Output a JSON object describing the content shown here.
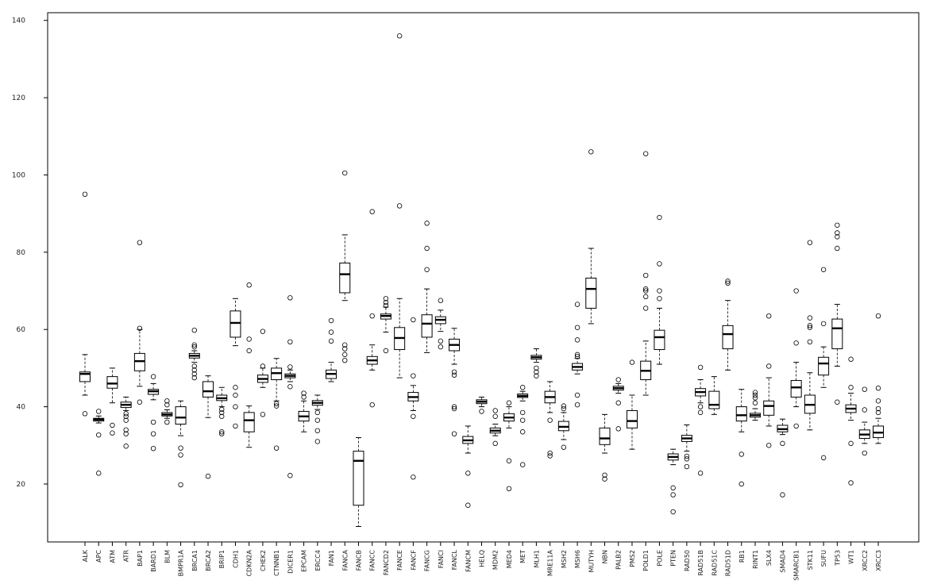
{
  "chart_data": {
    "type": "boxplot",
    "title": "",
    "xlabel": "",
    "ylabel": "",
    "ylim": [
      5,
      142
    ],
    "yticks": [
      20,
      40,
      60,
      80,
      100,
      120,
      140
    ],
    "grid": false,
    "colors": {
      "box": "#000000",
      "median": "#000000",
      "background": "#ffffff"
    },
    "boxes": [
      {
        "name": "ALK",
        "whisker_low": 43,
        "q1": 46.5,
        "median": 48.5,
        "q3": 49,
        "whisker_high": 53.5,
        "outliers": [
          95,
          38.2
        ]
      },
      {
        "name": "APC",
        "whisker_low": 35.8,
        "q1": 36.3,
        "median": 36.7,
        "q3": 37,
        "whisker_high": 37.6,
        "outliers": [
          38.8,
          32.7,
          22.8
        ]
      },
      {
        "name": "ATM",
        "whisker_low": 41,
        "q1": 44.8,
        "median": 46,
        "q3": 47.8,
        "whisker_high": 50,
        "outliers": [
          35.2,
          33.2
        ]
      },
      {
        "name": "ATR",
        "whisker_low": 39,
        "q1": 39.8,
        "median": 40.5,
        "q3": 41.2,
        "whisker_high": 42.5,
        "outliers": [
          38.2,
          37.5,
          36.5,
          34,
          33,
          29.8
        ]
      },
      {
        "name": "BAP1",
        "whisker_low": 45.3,
        "q1": 49.3,
        "median": 51.8,
        "q3": 53.8,
        "whisker_high": 60,
        "outliers": [
          82.5,
          60.3,
          41.2
        ]
      },
      {
        "name": "BARD1",
        "whisker_low": 41.8,
        "q1": 43.2,
        "median": 44,
        "q3": 44.5,
        "whisker_high": 46,
        "outliers": [
          47.8,
          36,
          33,
          29.2
        ]
      },
      {
        "name": "BLM",
        "whisker_low": 37,
        "q1": 37.6,
        "median": 38,
        "q3": 38.5,
        "whisker_high": 39.2,
        "outliers": [
          41.5,
          40.5,
          36
        ]
      },
      {
        "name": "BMPR1A",
        "whisker_low": 32.5,
        "q1": 35.5,
        "median": 37.2,
        "q3": 40,
        "whisker_high": 41.5,
        "outliers": [
          29.3,
          27.5,
          19.8
        ]
      },
      {
        "name": "BRCA1",
        "whisker_low": 51.5,
        "q1": 52.6,
        "median": 53.2,
        "q3": 53.8,
        "whisker_high": 54.5,
        "outliers": [
          59.8,
          56,
          55.5,
          50.5,
          49.5,
          48.5,
          47.5
        ]
      },
      {
        "name": "BRCA2",
        "whisker_low": 37.2,
        "q1": 42.5,
        "median": 44,
        "q3": 46.5,
        "whisker_high": 48,
        "outliers": [
          22
        ]
      },
      {
        "name": "BRIP1",
        "whisker_low": 40,
        "q1": 41.6,
        "median": 42.2,
        "q3": 43,
        "whisker_high": 45,
        "outliers": [
          39.3,
          38.5,
          37.5,
          33.5,
          33
        ]
      },
      {
        "name": "CDH1",
        "whisker_low": 55.8,
        "q1": 58,
        "median": 61.7,
        "q3": 64.8,
        "whisker_high": 68,
        "outliers": [
          45,
          43,
          40,
          35
        ]
      },
      {
        "name": "CDKN2A",
        "whisker_low": 29.5,
        "q1": 33.5,
        "median": 36.5,
        "q3": 38.5,
        "whisker_high": 40.2,
        "outliers": [
          71.5,
          57.5,
          54.5
        ]
      },
      {
        "name": "CHEK2",
        "whisker_low": 45,
        "q1": 46.3,
        "median": 47.2,
        "q3": 48.2,
        "whisker_high": 50,
        "outliers": [
          59.5,
          50.5,
          38
        ]
      },
      {
        "name": "CTNNB1",
        "whisker_low": 41.5,
        "q1": 47,
        "median": 48.7,
        "q3": 50,
        "whisker_high": 52.5,
        "outliers": [
          40.8,
          40.2,
          29.3
        ]
      },
      {
        "name": "DICER1",
        "whisker_low": 46.5,
        "q1": 47.5,
        "median": 48,
        "q3": 48.5,
        "whisker_high": 49.5,
        "outliers": [
          68.2,
          56.8,
          50.3,
          45.2,
          22.2
        ]
      },
      {
        "name": "EPCAM",
        "whisker_low": 33.5,
        "q1": 36.3,
        "median": 37.5,
        "q3": 38.8,
        "whisker_high": 41.5,
        "outliers": [
          43.5,
          42.5
        ]
      },
      {
        "name": "ERCC4",
        "whisker_low": 39.3,
        "q1": 40.4,
        "median": 41,
        "q3": 41.6,
        "whisker_high": 43,
        "outliers": [
          38.5,
          36.5,
          33.8,
          31
        ]
      },
      {
        "name": "FAN1",
        "whisker_low": 46.5,
        "q1": 47.3,
        "median": 48.5,
        "q3": 49.5,
        "whisker_high": 51.5,
        "outliers": [
          62.3,
          59.3,
          57
        ]
      },
      {
        "name": "FANCA",
        "whisker_low": 67.5,
        "q1": 69.5,
        "median": 74.3,
        "q3": 77.2,
        "whisker_high": 84.5,
        "outliers": [
          100.5,
          56,
          55,
          53.5,
          52
        ]
      },
      {
        "name": "FANCB",
        "whisker_low": 9,
        "q1": 14.5,
        "median": 26,
        "q3": 28.5,
        "whisker_high": 32,
        "outliers": []
      },
      {
        "name": "FANCC",
        "whisker_low": 49.5,
        "q1": 51,
        "median": 52,
        "q3": 53,
        "whisker_high": 56,
        "outliers": [
          90.5,
          63.5,
          40.5
        ]
      },
      {
        "name": "FANCD2",
        "whisker_low": 59.3,
        "q1": 62.7,
        "median": 63.5,
        "q3": 64,
        "whisker_high": 65.8,
        "outliers": [
          68,
          67,
          66.2,
          54.5
        ]
      },
      {
        "name": "FANCE",
        "whisker_low": 47.5,
        "q1": 54.8,
        "median": 57.8,
        "q3": 60.5,
        "whisker_high": 68,
        "outliers": [
          136,
          92
        ]
      },
      {
        "name": "FANCF",
        "whisker_low": 39,
        "q1": 41.5,
        "median": 42.5,
        "q3": 43.7,
        "whisker_high": 45.5,
        "outliers": [
          62.5,
          48,
          37.5,
          21.8
        ]
      },
      {
        "name": "FANCG",
        "whisker_low": 54,
        "q1": 58,
        "median": 61.5,
        "q3": 63.8,
        "whisker_high": 70.5,
        "outliers": [
          87.5,
          81,
          75.5
        ]
      },
      {
        "name": "FANCI",
        "whisker_low": 59.5,
        "q1": 61.5,
        "median": 62.5,
        "q3": 63.3,
        "whisker_high": 65,
        "outliers": [
          67.5,
          57,
          55.5
        ]
      },
      {
        "name": "FANCL",
        "whisker_low": 51,
        "q1": 54.5,
        "median": 56,
        "q3": 57.5,
        "whisker_high": 60.3,
        "outliers": [
          49,
          48.2,
          40,
          39.5,
          33
        ]
      },
      {
        "name": "FANCM",
        "whisker_low": 28,
        "q1": 30.5,
        "median": 31.3,
        "q3": 32.3,
        "whisker_high": 35,
        "outliers": [
          22.8,
          14.5
        ]
      },
      {
        "name": "HELQ",
        "whisker_low": 40,
        "q1": 40.8,
        "median": 41.3,
        "q3": 41.8,
        "whisker_high": 42.5,
        "outliers": [
          38.8
        ]
      },
      {
        "name": "MDM2",
        "whisker_low": 32.5,
        "q1": 33.2,
        "median": 33.8,
        "q3": 34.5,
        "whisker_high": 35.5,
        "outliers": [
          39,
          37.5,
          30.5
        ]
      },
      {
        "name": "MED4",
        "whisker_low": 34.5,
        "q1": 36.3,
        "median": 37.2,
        "q3": 38.2,
        "whisker_high": 40,
        "outliers": [
          41,
          26,
          18.8
        ]
      },
      {
        "name": "MET",
        "whisker_low": 41.5,
        "q1": 42.4,
        "median": 42.8,
        "q3": 43.3,
        "whisker_high": 44,
        "outliers": [
          45,
          38.5,
          36.5,
          33.5,
          25
        ]
      },
      {
        "name": "MLH1",
        "whisker_low": 51.5,
        "q1": 52.3,
        "median": 52.8,
        "q3": 53.3,
        "whisker_high": 55,
        "outliers": [
          50,
          49,
          48
        ]
      },
      {
        "name": "MRE11A",
        "whisker_low": 38.5,
        "q1": 41,
        "median": 42.5,
        "q3": 44,
        "whisker_high": 46.5,
        "outliers": [
          36.5,
          28,
          27.3
        ]
      },
      {
        "name": "MSH2",
        "whisker_low": 31.5,
        "q1": 33.8,
        "median": 34.8,
        "q3": 36.2,
        "whisker_high": 38.5,
        "outliers": [
          40.2,
          39.5,
          29.5
        ]
      },
      {
        "name": "MSH6",
        "whisker_low": 48.5,
        "q1": 49.5,
        "median": 50.3,
        "q3": 51.2,
        "whisker_high": 52.5,
        "outliers": [
          66.5,
          60.5,
          57.3,
          53.5,
          53,
          43,
          40.5
        ]
      },
      {
        "name": "MUTYH",
        "whisker_low": 61.5,
        "q1": 65.5,
        "median": 70.5,
        "q3": 73.3,
        "whisker_high": 81,
        "outliers": [
          106
        ]
      },
      {
        "name": "NBN",
        "whisker_low": 28,
        "q1": 30.2,
        "median": 31.8,
        "q3": 34.5,
        "whisker_high": 38,
        "outliers": [
          22.3,
          21.3
        ]
      },
      {
        "name": "PALB2",
        "whisker_low": 43.5,
        "q1": 44.3,
        "median": 44.8,
        "q3": 45.3,
        "whisker_high": 46,
        "outliers": [
          47,
          41,
          34.3
        ]
      },
      {
        "name": "PMS2",
        "whisker_low": 29,
        "q1": 34.5,
        "median": 36.3,
        "q3": 39,
        "whisker_high": 43,
        "outliers": [
          51.5
        ]
      },
      {
        "name": "POLD1",
        "whisker_low": 43,
        "q1": 47,
        "median": 49.3,
        "q3": 51.8,
        "whisker_high": 57,
        "outliers": [
          105.5,
          74,
          70.5,
          70,
          68.5,
          65.5
        ]
      },
      {
        "name": "POLE",
        "whisker_low": 51,
        "q1": 54.8,
        "median": 58,
        "q3": 59.8,
        "whisker_high": 65.5,
        "outliers": [
          89,
          77,
          70,
          68
        ]
      },
      {
        "name": "PTEN",
        "whisker_low": 25,
        "q1": 26.2,
        "median": 27,
        "q3": 27.8,
        "whisker_high": 29,
        "outliers": [
          19,
          17.2,
          12.8
        ]
      },
      {
        "name": "RAD50",
        "whisker_low": 28.5,
        "q1": 31,
        "median": 31.8,
        "q3": 32.6,
        "whisker_high": 35.3,
        "outliers": [
          27.2,
          26.5,
          24.5
        ]
      },
      {
        "name": "RAD51B",
        "whisker_low": 41,
        "q1": 42.8,
        "median": 43.8,
        "q3": 44.7,
        "whisker_high": 47,
        "outliers": [
          50.2,
          40,
          38.5,
          22.8
        ]
      },
      {
        "name": "RAD51C",
        "whisker_low": 38,
        "q1": 39.5,
        "median": 40.5,
        "q3": 44,
        "whisker_high": 47.8,
        "outliers": []
      },
      {
        "name": "RAD51D",
        "whisker_low": 49.5,
        "q1": 55,
        "median": 58.8,
        "q3": 61,
        "whisker_high": 67.5,
        "outliers": [
          72.5,
          72
        ]
      },
      {
        "name": "RB1",
        "whisker_low": 33.5,
        "q1": 36.3,
        "median": 37.8,
        "q3": 40,
        "whisker_high": 44.5,
        "outliers": [
          27.7,
          20
        ]
      },
      {
        "name": "RINT1",
        "whisker_low": 36.5,
        "q1": 37.3,
        "median": 37.8,
        "q3": 38.3,
        "whisker_high": 39.5,
        "outliers": [
          43.7,
          43,
          42.3,
          41
        ]
      },
      {
        "name": "SLX4",
        "whisker_low": 35,
        "q1": 37.8,
        "median": 40.2,
        "q3": 41.5,
        "whisker_high": 47.5,
        "outliers": [
          63.5,
          50.5,
          30
        ]
      },
      {
        "name": "SMAD4",
        "whisker_low": 32.8,
        "q1": 33.5,
        "median": 34.2,
        "q3": 35.2,
        "whisker_high": 36.8,
        "outliers": [
          30.5,
          17.2
        ]
      },
      {
        "name": "SMARCB1",
        "whisker_low": 40,
        "q1": 42.5,
        "median": 45,
        "q3": 46.8,
        "whisker_high": 51.5,
        "outliers": [
          70,
          56.5,
          35
        ]
      },
      {
        "name": "STK11",
        "whisker_low": 34,
        "q1": 38.3,
        "median": 40.5,
        "q3": 43,
        "whisker_high": 48.8,
        "outliers": [
          82.5,
          63,
          61,
          60.5,
          56.8
        ]
      },
      {
        "name": "SUFU",
        "whisker_low": 45,
        "q1": 48.2,
        "median": 51.2,
        "q3": 52.8,
        "whisker_high": 55.5,
        "outliers": [
          75.5,
          61.5,
          26.8
        ]
      },
      {
        "name": "TP53",
        "whisker_low": 50.5,
        "q1": 55,
        "median": 60.3,
        "q3": 62.7,
        "whisker_high": 66.5,
        "outliers": [
          87,
          85,
          84,
          81,
          41.2
        ]
      },
      {
        "name": "WT1",
        "whisker_low": 36.5,
        "q1": 38.5,
        "median": 39.5,
        "q3": 40.5,
        "whisker_high": 43.5,
        "outliers": [
          52.3,
          45,
          30.5,
          20.3
        ]
      },
      {
        "name": "XRCC2",
        "whisker_low": 30.5,
        "q1": 31.8,
        "median": 32.8,
        "q3": 34,
        "whisker_high": 36,
        "outliers": [
          44.5,
          39.2,
          28
        ]
      },
      {
        "name": "XRCC3",
        "whisker_low": 30.5,
        "q1": 32,
        "median": 33.3,
        "q3": 35,
        "whisker_high": 37,
        "outliers": [
          63.5,
          44.8,
          41.5,
          39.5,
          38.5
        ]
      }
    ]
  }
}
